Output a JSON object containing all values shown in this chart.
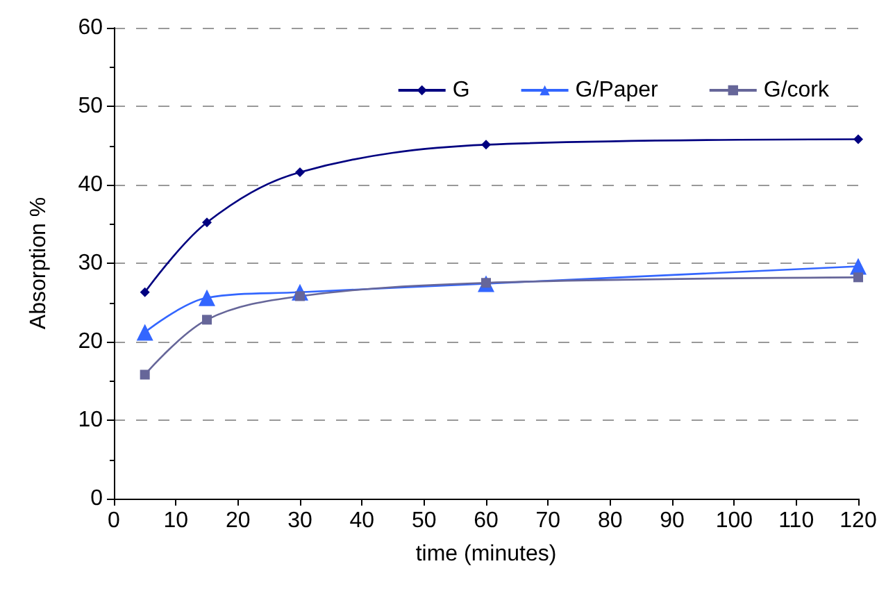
{
  "chart_data": {
    "type": "line",
    "xlabel": "time (minutes)",
    "ylabel": "Absorption %",
    "x": [
      5,
      15,
      30,
      60,
      120
    ],
    "series": [
      {
        "name": "G",
        "color": "#000080",
        "marker": "diamond",
        "values": [
          26.3,
          35.2,
          41.6,
          45.1,
          45.8
        ]
      },
      {
        "name": "G/Paper",
        "color": "#3366ff",
        "marker": "triangle",
        "values": [
          21.2,
          25.6,
          26.3,
          27.4,
          29.6
        ]
      },
      {
        "name": "G/cork",
        "color": "#666699",
        "marker": "square",
        "values": [
          15.8,
          22.8,
          25.8,
          27.5,
          28.2
        ]
      }
    ],
    "xlim": [
      0,
      120
    ],
    "xticks": [
      0,
      10,
      20,
      30,
      40,
      50,
      60,
      70,
      80,
      90,
      100,
      110,
      120
    ],
    "ylim": [
      0,
      60
    ],
    "yticks": [
      0,
      10,
      20,
      30,
      40,
      50,
      60
    ],
    "grid": "y",
    "legend": "top right"
  }
}
